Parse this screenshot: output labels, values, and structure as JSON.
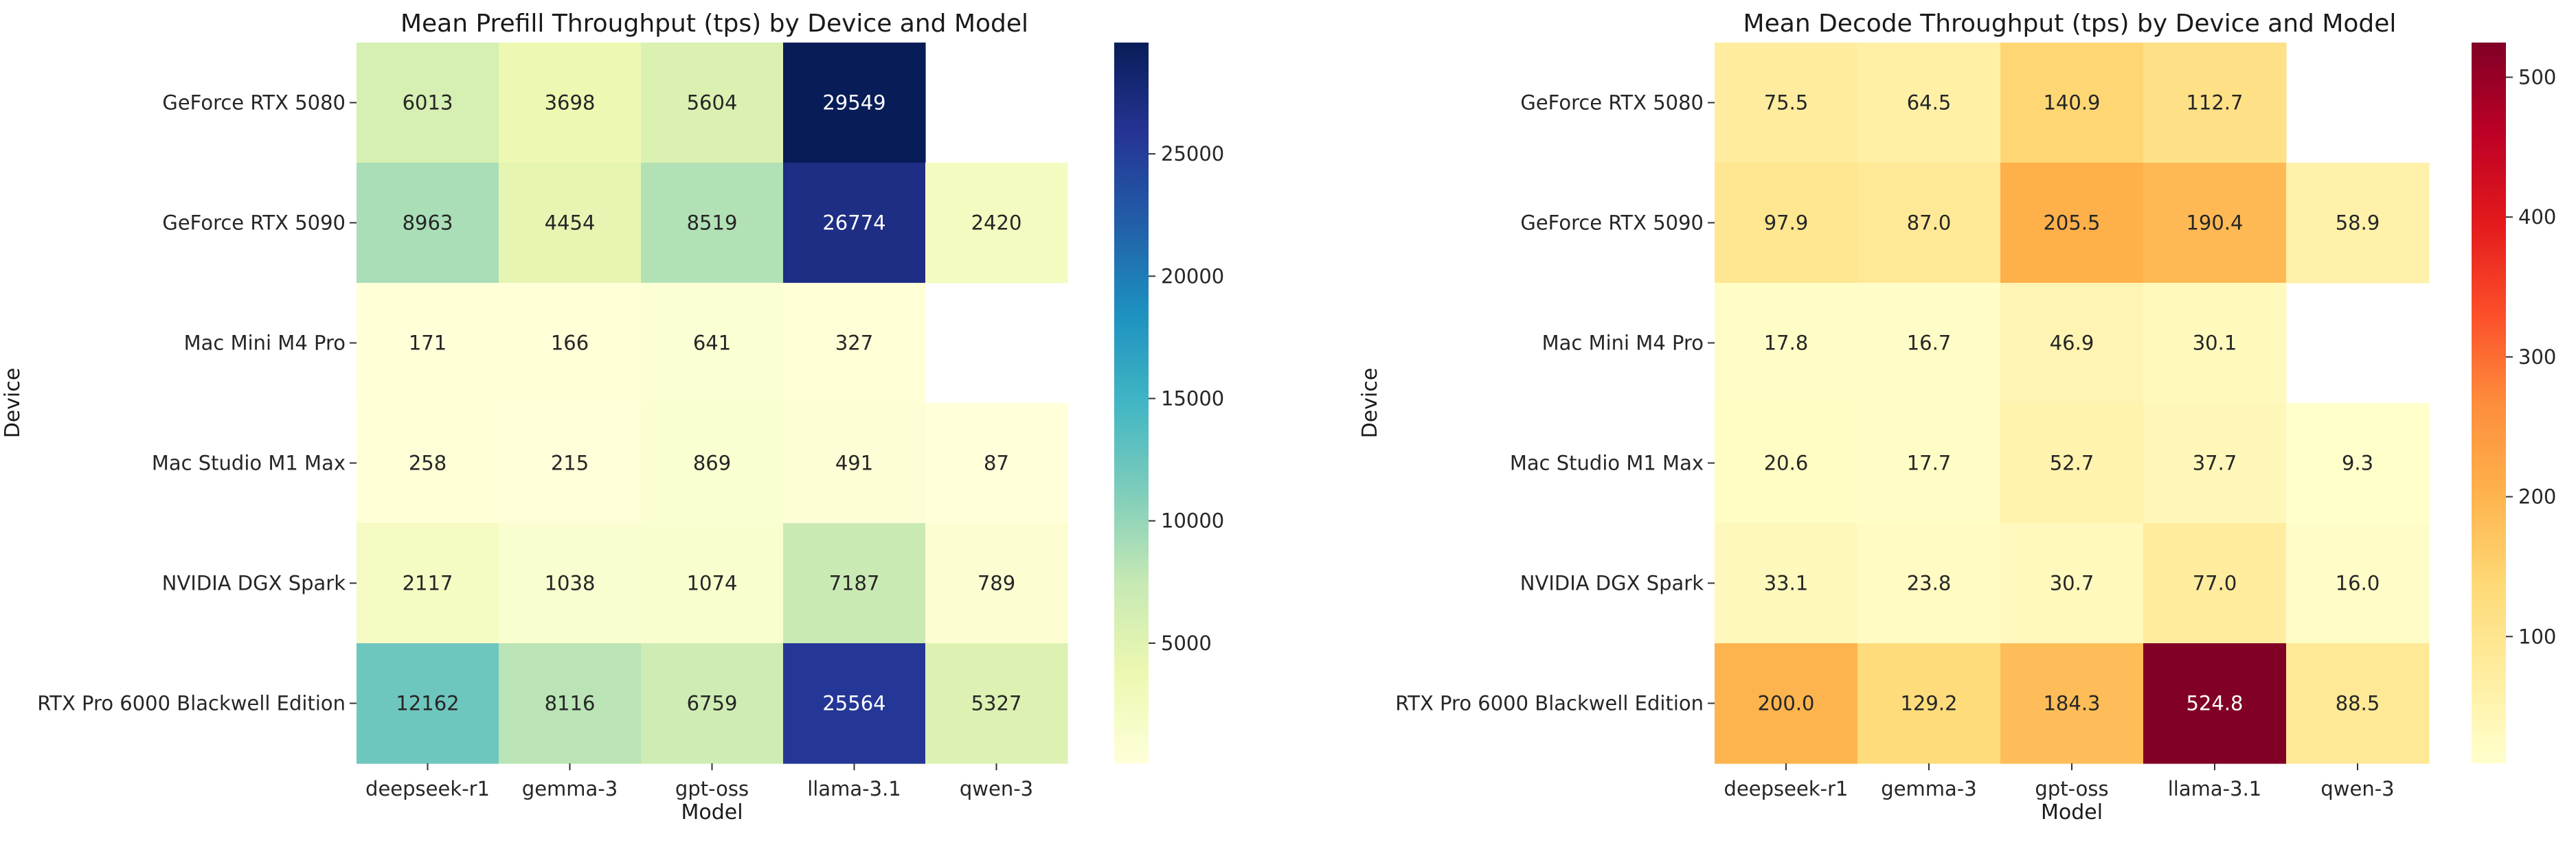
{
  "chart_data": [
    {
      "type": "heatmap",
      "title": "Mean Prefill Throughput (tps) by Device and Model",
      "xlabel": "Model",
      "ylabel": "Device",
      "x_categories": [
        "deepseek-r1",
        "gemma-3",
        "gpt-oss",
        "llama-3.1",
        "qwen-3"
      ],
      "y_categories": [
        "GeForce RTX 5080",
        "GeForce RTX 5090",
        "Mac Mini M4 Pro",
        "Mac Studio M1 Max",
        "NVIDIA DGX Spark",
        "RTX Pro 6000 Blackwell Edition"
      ],
      "values": [
        [
          6013,
          3698,
          5604,
          29549,
          null
        ],
        [
          8963,
          4454,
          8519,
          26774,
          2420
        ],
        [
          171,
          166,
          641,
          327,
          null
        ],
        [
          258,
          215,
          869,
          491,
          87
        ],
        [
          2117,
          1038,
          1074,
          7187,
          789
        ],
        [
          12162,
          8116,
          6759,
          25564,
          5327
        ]
      ],
      "cell_labels": [
        [
          "6013",
          "3698",
          "5604",
          "29549",
          ""
        ],
        [
          "8963",
          "4454",
          "8519",
          "26774",
          "2420"
        ],
        [
          "171",
          "166",
          "641",
          "327",
          ""
        ],
        [
          "258",
          "215",
          "869",
          "491",
          "87"
        ],
        [
          "2117",
          "1038",
          "1074",
          "7187",
          "789"
        ],
        [
          "12162",
          "8116",
          "6759",
          "25564",
          "5327"
        ]
      ],
      "colormap": "YlGnBu",
      "colormap_colors": [
        "#ffffd9",
        "#edf8b1",
        "#c7e9b4",
        "#7fcdbb",
        "#41b6c4",
        "#1d91c0",
        "#225ea8",
        "#253494",
        "#081d58"
      ],
      "vmin": 87,
      "vmax": 29549,
      "colorbar_ticks": [
        5000,
        10000,
        15000,
        20000,
        25000
      ],
      "colorbar_tick_labels": [
        "5000",
        "10000",
        "15000",
        "20000",
        "25000"
      ]
    },
    {
      "type": "heatmap",
      "title": "Mean Decode Throughput (tps) by Device and Model",
      "xlabel": "Model",
      "ylabel": "Device",
      "x_categories": [
        "deepseek-r1",
        "gemma-3",
        "gpt-oss",
        "llama-3.1",
        "qwen-3"
      ],
      "y_categories": [
        "GeForce RTX 5080",
        "GeForce RTX 5090",
        "Mac Mini M4 Pro",
        "Mac Studio M1 Max",
        "NVIDIA DGX Spark",
        "RTX Pro 6000 Blackwell Edition"
      ],
      "values": [
        [
          75.5,
          64.5,
          140.9,
          112.7,
          null
        ],
        [
          97.9,
          87.0,
          205.5,
          190.4,
          58.9
        ],
        [
          17.8,
          16.7,
          46.9,
          30.1,
          null
        ],
        [
          20.6,
          17.7,
          52.7,
          37.7,
          9.3
        ],
        [
          33.1,
          23.8,
          30.7,
          77.0,
          16.0
        ],
        [
          200.0,
          129.2,
          184.3,
          524.8,
          88.5
        ]
      ],
      "cell_labels": [
        [
          "75.5",
          "64.5",
          "140.9",
          "112.7",
          ""
        ],
        [
          "97.9",
          "87.0",
          "205.5",
          "190.4",
          "58.9"
        ],
        [
          "17.8",
          "16.7",
          "46.9",
          "30.1",
          ""
        ],
        [
          "20.6",
          "17.7",
          "52.7",
          "37.7",
          "9.3"
        ],
        [
          "33.1",
          "23.8",
          "30.7",
          "77.0",
          "16.0"
        ],
        [
          "200.0",
          "129.2",
          "184.3",
          "524.8",
          "88.5"
        ]
      ],
      "colormap": "YlOrRd",
      "colormap_colors": [
        "#ffffcc",
        "#ffeda0",
        "#fed976",
        "#feb24c",
        "#fd8d3c",
        "#fc4e2a",
        "#e31a1c",
        "#bd0026",
        "#800026"
      ],
      "vmin": 9.3,
      "vmax": 524.8,
      "colorbar_ticks": [
        100,
        200,
        300,
        400,
        500
      ],
      "colorbar_tick_labels": [
        "100",
        "200",
        "300",
        "400",
        "500"
      ]
    }
  ]
}
